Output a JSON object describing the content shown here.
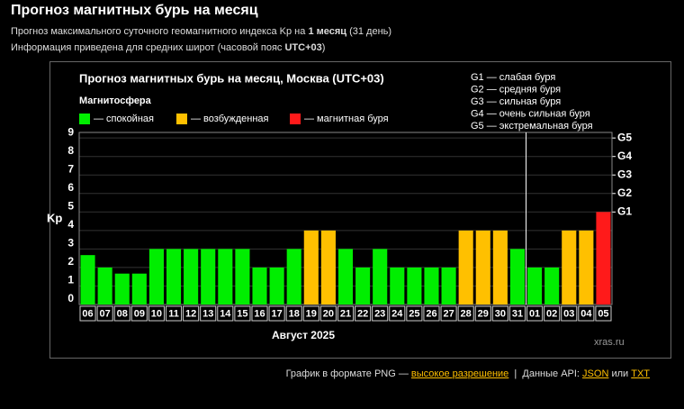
{
  "header": {
    "title": "Прогноз магнитных бурь на месяц",
    "line1": [
      "Прогноз максимального суточного геомагнитного индекса Kp на ",
      "1 месяц",
      " (31 день)"
    ],
    "line2": [
      "Информация приведена для средних широт (часовой пояс ",
      "UTC+03",
      ")"
    ]
  },
  "chart_data": {
    "type": "bar",
    "title": "Прогноз магнитных бурь на месяц, Москва (UTC+03)",
    "legend_title": "Магнитосфера",
    "legend": [
      {
        "name": "— спокойная",
        "color": "#00ee00"
      },
      {
        "name": "— возбужденная",
        "color": "#ffc000"
      },
      {
        "name": "— магнитная буря",
        "color": "#ff1a1a"
      }
    ],
    "scale_notes": [
      "G1 — слабая буря",
      "G2 — средняя буря",
      "G3 — сильная буря",
      "G4 — очень сильная буря",
      "G5 — экстремальная буря"
    ],
    "ylabel": "Kp",
    "xlabel": "Август 2025",
    "watermark": "xras.ru",
    "categories": [
      "06",
      "07",
      "08",
      "09",
      "10",
      "11",
      "12",
      "13",
      "14",
      "15",
      "16",
      "17",
      "18",
      "19",
      "20",
      "21",
      "22",
      "23",
      "24",
      "25",
      "26",
      "27",
      "28",
      "29",
      "30",
      "31",
      "01",
      "02",
      "03",
      "04",
      "05"
    ],
    "values": [
      2.67,
      2,
      1.67,
      1.67,
      3,
      3,
      3,
      3,
      3,
      3,
      2,
      2,
      3,
      4,
      4,
      3,
      2,
      3,
      2,
      2,
      2,
      2,
      4,
      4,
      4,
      3,
      2,
      2,
      4,
      4,
      5
    ],
    "colors": [
      "#00ee00",
      "#00ee00",
      "#00ee00",
      "#00ee00",
      "#00ee00",
      "#00ee00",
      "#00ee00",
      "#00ee00",
      "#00ee00",
      "#00ee00",
      "#00ee00",
      "#00ee00",
      "#00ee00",
      "#ffc000",
      "#ffc000",
      "#00ee00",
      "#00ee00",
      "#00ee00",
      "#00ee00",
      "#00ee00",
      "#00ee00",
      "#00ee00",
      "#ffc000",
      "#ffc000",
      "#ffc000",
      "#00ee00",
      "#00ee00",
      "#00ee00",
      "#ffc000",
      "#ffc000",
      "#ff1a1a"
    ],
    "ylim": [
      0,
      9.3
    ],
    "yticks": [
      0,
      1,
      2,
      3,
      4,
      5,
      6,
      7,
      8,
      9
    ],
    "y2lim": [
      0,
      9.3
    ],
    "y2ticks": [
      {
        "value": 5,
        "label": "G1"
      },
      {
        "value": 6,
        "label": "G2"
      },
      {
        "value": 7,
        "label": "G3"
      },
      {
        "value": 8,
        "label": "G4"
      },
      {
        "value": 9,
        "label": "G5"
      }
    ],
    "grid": true
  },
  "footer": [
    "График в формате PNG — ",
    "высокое разрешение",
    "|",
    "Данные API: ",
    "JSON",
    " или ",
    "TXT"
  ]
}
